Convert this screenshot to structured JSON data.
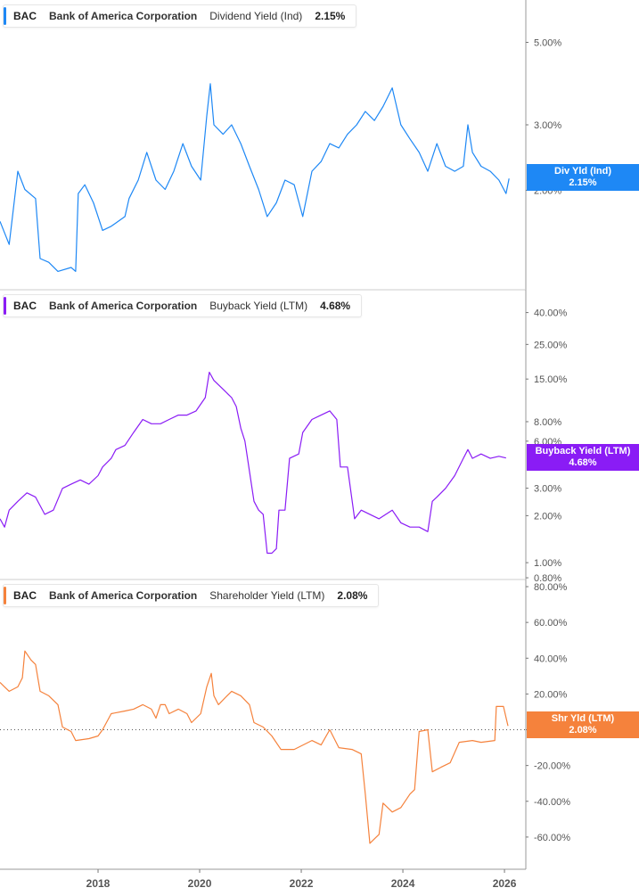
{
  "x_axis": {
    "ticks": [
      "2018",
      "2020",
      "2022",
      "2024",
      "2026"
    ],
    "tick_years": [
      2018,
      2020,
      2022,
      2024,
      2026
    ],
    "range": [
      2016.07,
      2026.42
    ]
  },
  "chart_data": [
    {
      "type": "line",
      "ticker": "BAC",
      "company": "Bank of America Corporation",
      "metric": "Dividend Yield (Ind)",
      "value": "2.15%",
      "badge_label": "Div Yld (Ind)",
      "badge_value": "2.15%",
      "color": "#1e88f5",
      "yscale": "log",
      "ylim": [
        1.08,
        6.5
      ],
      "yticks": [
        5,
        3,
        2
      ],
      "ytick_labels": [
        "5.00%",
        "3.00%",
        "2.00%"
      ],
      "points": [
        [
          2016.07,
          1.65
        ],
        [
          2016.25,
          1.43
        ],
        [
          2016.42,
          2.25
        ],
        [
          2016.56,
          2.01
        ],
        [
          2016.77,
          1.9
        ],
        [
          2016.86,
          1.31
        ],
        [
          2017.03,
          1.28
        ],
        [
          2017.21,
          1.21
        ],
        [
          2017.47,
          1.24
        ],
        [
          2017.56,
          1.21
        ],
        [
          2017.61,
          1.96
        ],
        [
          2017.74,
          2.07
        ],
        [
          2017.91,
          1.85
        ],
        [
          2018.09,
          1.56
        ],
        [
          2018.26,
          1.6
        ],
        [
          2018.53,
          1.7
        ],
        [
          2018.61,
          1.9
        ],
        [
          2018.79,
          2.13
        ],
        [
          2018.96,
          2.53
        ],
        [
          2019.14,
          2.13
        ],
        [
          2019.32,
          2.01
        ],
        [
          2019.49,
          2.25
        ],
        [
          2019.67,
          2.67
        ],
        [
          2019.84,
          2.32
        ],
        [
          2020.02,
          2.13
        ],
        [
          2020.14,
          3.17
        ],
        [
          2020.21,
          3.87
        ],
        [
          2020.28,
          3.0
        ],
        [
          2020.46,
          2.83
        ],
        [
          2020.63,
          3.0
        ],
        [
          2020.81,
          2.67
        ],
        [
          2020.98,
          2.32
        ],
        [
          2021.16,
          2.01
        ],
        [
          2021.33,
          1.7
        ],
        [
          2021.51,
          1.85
        ],
        [
          2021.68,
          2.13
        ],
        [
          2021.86,
          2.07
        ],
        [
          2022.03,
          1.7
        ],
        [
          2022.21,
          2.25
        ],
        [
          2022.39,
          2.39
        ],
        [
          2022.56,
          2.67
        ],
        [
          2022.74,
          2.6
        ],
        [
          2022.91,
          2.83
        ],
        [
          2023.09,
          3.0
        ],
        [
          2023.26,
          3.26
        ],
        [
          2023.44,
          3.08
        ],
        [
          2023.61,
          3.36
        ],
        [
          2023.79,
          3.77
        ],
        [
          2023.96,
          3.0
        ],
        [
          2024.14,
          2.75
        ],
        [
          2024.32,
          2.53
        ],
        [
          2024.49,
          2.25
        ],
        [
          2024.67,
          2.67
        ],
        [
          2024.84,
          2.32
        ],
        [
          2025.02,
          2.25
        ],
        [
          2025.19,
          2.32
        ],
        [
          2025.28,
          3.0
        ],
        [
          2025.37,
          2.53
        ],
        [
          2025.54,
          2.32
        ],
        [
          2025.72,
          2.25
        ],
        [
          2025.89,
          2.13
        ],
        [
          2026.03,
          1.96
        ],
        [
          2026.09,
          2.15
        ]
      ]
    },
    {
      "type": "line",
      "ticker": "BAC",
      "company": "Bank of America Corporation",
      "metric": "Buyback Yield (LTM)",
      "value": "4.68%",
      "badge_label": "Buyback Yield (LTM)",
      "badge_value": "4.68%",
      "color": "#8a1cf5",
      "yscale": "log",
      "ylim": [
        0.78,
        56
      ],
      "yticks": [
        40,
        25,
        15,
        8,
        6,
        3,
        2,
        1,
        0.8
      ],
      "ytick_labels": [
        "40.00%",
        "25.00%",
        "15.00%",
        "8.00%",
        "6.00%",
        "3.00%",
        "2.00%",
        "1.00%",
        "0.80%"
      ],
      "points": [
        [
          2016.07,
          1.91
        ],
        [
          2016.16,
          1.69
        ],
        [
          2016.25,
          2.17
        ],
        [
          2016.42,
          2.47
        ],
        [
          2016.6,
          2.8
        ],
        [
          2016.77,
          2.63
        ],
        [
          2016.86,
          2.32
        ],
        [
          2016.95,
          2.04
        ],
        [
          2017.12,
          2.17
        ],
        [
          2017.3,
          2.99
        ],
        [
          2017.47,
          3.18
        ],
        [
          2017.65,
          3.39
        ],
        [
          2017.82,
          3.18
        ],
        [
          2018.0,
          3.61
        ],
        [
          2018.09,
          4.1
        ],
        [
          2018.26,
          4.66
        ],
        [
          2018.35,
          5.3
        ],
        [
          2018.53,
          5.64
        ],
        [
          2018.7,
          6.82
        ],
        [
          2018.88,
          8.26
        ],
        [
          2019.05,
          7.76
        ],
        [
          2019.23,
          7.76
        ],
        [
          2019.4,
          8.26
        ],
        [
          2019.58,
          8.81
        ],
        [
          2019.75,
          8.81
        ],
        [
          2019.93,
          9.38
        ],
        [
          2020.11,
          11.4
        ],
        [
          2020.19,
          16.6
        ],
        [
          2020.28,
          14.7
        ],
        [
          2020.46,
          12.9
        ],
        [
          2020.63,
          11.4
        ],
        [
          2020.72,
          10.0
        ],
        [
          2020.81,
          7.27
        ],
        [
          2020.89,
          6.01
        ],
        [
          2021.07,
          2.47
        ],
        [
          2021.16,
          2.17
        ],
        [
          2021.25,
          2.04
        ],
        [
          2021.33,
          1.15
        ],
        [
          2021.42,
          1.15
        ],
        [
          2021.51,
          1.23
        ],
        [
          2021.56,
          2.17
        ],
        [
          2021.68,
          2.17
        ],
        [
          2021.77,
          4.66
        ],
        [
          2021.95,
          4.97
        ],
        [
          2022.03,
          6.82
        ],
        [
          2022.21,
          8.26
        ],
        [
          2022.39,
          8.81
        ],
        [
          2022.56,
          9.38
        ],
        [
          2022.7,
          8.26
        ],
        [
          2022.77,
          4.1
        ],
        [
          2022.91,
          4.1
        ],
        [
          2023.05,
          1.91
        ],
        [
          2023.18,
          2.17
        ],
        [
          2023.35,
          2.04
        ],
        [
          2023.53,
          1.91
        ],
        [
          2023.79,
          2.17
        ],
        [
          2023.96,
          1.8
        ],
        [
          2024.14,
          1.69
        ],
        [
          2024.32,
          1.69
        ],
        [
          2024.49,
          1.58
        ],
        [
          2024.58,
          2.47
        ],
        [
          2024.67,
          2.63
        ],
        [
          2024.84,
          2.99
        ],
        [
          2025.02,
          3.61
        ],
        [
          2025.19,
          4.66
        ],
        [
          2025.28,
          5.3
        ],
        [
          2025.37,
          4.66
        ],
        [
          2025.54,
          4.97
        ],
        [
          2025.72,
          4.66
        ],
        [
          2025.89,
          4.8
        ],
        [
          2026.03,
          4.68
        ]
      ]
    },
    {
      "type": "line",
      "ticker": "BAC",
      "company": "Bank of America Corporation",
      "metric": "Shareholder Yield (LTM)",
      "value": "2.08%",
      "badge_label": "Shr Yld (LTM)",
      "badge_value": "2.08%",
      "color": "#f5823c",
      "yscale": "linear",
      "ylim": [
        -78,
        84
      ],
      "yticks": [
        80,
        60,
        40,
        20,
        0,
        -20,
        -40,
        -60
      ],
      "ytick_labels": [
        "80.00%",
        "60.00%",
        "40.00%",
        "20.00%",
        "0.00%",
        "-20.00%",
        "-40.00%",
        "-60.00%"
      ],
      "reference_line": 0,
      "points": [
        [
          2016.07,
          26.5
        ],
        [
          2016.16,
          24
        ],
        [
          2016.25,
          21.5
        ],
        [
          2016.42,
          24
        ],
        [
          2016.51,
          29
        ],
        [
          2016.56,
          44
        ],
        [
          2016.68,
          39
        ],
        [
          2016.77,
          36.5
        ],
        [
          2016.86,
          21.5
        ],
        [
          2017.03,
          19
        ],
        [
          2017.21,
          14
        ],
        [
          2017.3,
          1.5
        ],
        [
          2017.47,
          -1
        ],
        [
          2017.56,
          -6
        ],
        [
          2017.82,
          -5
        ],
        [
          2018.0,
          -3.5
        ],
        [
          2018.09,
          0
        ],
        [
          2018.26,
          9
        ],
        [
          2018.53,
          10.5
        ],
        [
          2018.7,
          11.5
        ],
        [
          2018.88,
          14
        ],
        [
          2019.05,
          11.5
        ],
        [
          2019.14,
          6.5
        ],
        [
          2019.23,
          14
        ],
        [
          2019.32,
          14
        ],
        [
          2019.4,
          9
        ],
        [
          2019.58,
          11.5
        ],
        [
          2019.75,
          9
        ],
        [
          2019.84,
          4
        ],
        [
          2020.02,
          9
        ],
        [
          2020.14,
          24
        ],
        [
          2020.23,
          31.5
        ],
        [
          2020.28,
          19
        ],
        [
          2020.37,
          14
        ],
        [
          2020.54,
          19
        ],
        [
          2020.63,
          21.5
        ],
        [
          2020.81,
          19
        ],
        [
          2020.98,
          14
        ],
        [
          2021.07,
          4
        ],
        [
          2021.25,
          1.5
        ],
        [
          2021.42,
          -3.5
        ],
        [
          2021.6,
          -11
        ],
        [
          2021.86,
          -11
        ],
        [
          2022.21,
          -6
        ],
        [
          2022.39,
          -8.5
        ],
        [
          2022.56,
          0
        ],
        [
          2022.74,
          -10
        ],
        [
          2023.0,
          -11
        ],
        [
          2023.18,
          -13.5
        ],
        [
          2023.26,
          -36
        ],
        [
          2023.35,
          -63.5
        ],
        [
          2023.44,
          -61
        ],
        [
          2023.53,
          -58.5
        ],
        [
          2023.61,
          -41
        ],
        [
          2023.79,
          -46
        ],
        [
          2023.96,
          -43.5
        ],
        [
          2024.14,
          -36
        ],
        [
          2024.23,
          -33.5
        ],
        [
          2024.32,
          -1
        ],
        [
          2024.49,
          0
        ],
        [
          2024.58,
          -23.5
        ],
        [
          2024.75,
          -21
        ],
        [
          2024.93,
          -18.5
        ],
        [
          2025.11,
          -7
        ],
        [
          2025.37,
          -6
        ],
        [
          2025.54,
          -7
        ],
        [
          2025.81,
          -6
        ],
        [
          2025.84,
          13
        ],
        [
          2025.98,
          13
        ],
        [
          2026.07,
          2.08
        ]
      ]
    }
  ]
}
